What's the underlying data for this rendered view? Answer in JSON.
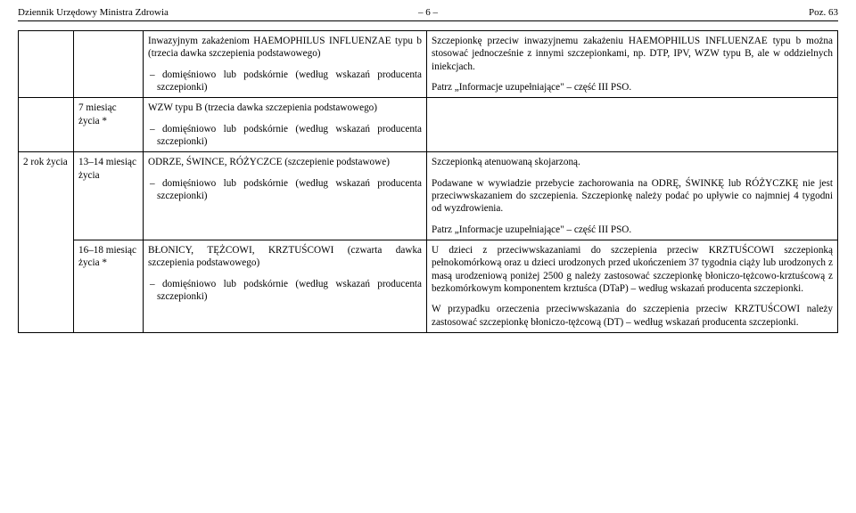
{
  "header": {
    "left": "Dziennik Urzędowy Ministra Zdrowia",
    "center": "– 6 –",
    "right": "Poz. 63"
  },
  "rows": [
    {
      "c0": "",
      "c1": "",
      "c2": [
        {
          "t": "Inwazyjnym zakażeniom HAEMOPHILUS INFLUENZAE typu b (trzecia dawka szczepienia podstawowego)",
          "cls": "para justify"
        },
        {
          "t": "– domięśniowo lub podskórnie (według wskazań producenta szczepionki)",
          "cls": "para indent justify"
        }
      ],
      "c3": [
        {
          "t": "Szczepionkę przeciw inwazyjnemu zakażeniu HAEMOPHILUS INFLUENZAE typu b można stosować jednocześnie z innymi szczepionkami, np. DTP, IPV, WZW typu B, ale w oddzielnych iniekcjach.",
          "cls": "para justify"
        },
        {
          "t": "Patrz „Informacje uzupełniające\" – część III PSO.",
          "cls": "para"
        }
      ]
    },
    {
      "c0": "",
      "c1": "7 miesiąc życia *",
      "c2": [
        {
          "t": "WZW typu B (trzecia dawka szczepienia podstawowego)",
          "cls": "para justify"
        },
        {
          "t": "– domięśniowo lub podskórnie (według wskazań producenta szczepionki)",
          "cls": "para indent justify"
        }
      ],
      "c3": [
        {
          "t": "",
          "cls": "para"
        }
      ]
    },
    {
      "c0": "2 rok życia",
      "c1": "13–14 miesiąc życia",
      "c2": [
        {
          "t": "ODRZE, ŚWINCE, RÓŻYCZCE (szczepienie podstawowe)",
          "cls": "para justify"
        },
        {
          "t": "– domięśniowo lub podskórnie (według wskazań producenta szczepionki)",
          "cls": "para indent justify"
        }
      ],
      "c3": [
        {
          "t": "Szczepionką atenuowaną skojarzoną.",
          "cls": "para"
        },
        {
          "t": "Podawane w wywiadzie przebycie zachorowania na ODRĘ, ŚWINKĘ lub RÓŻYCZKĘ nie jest przeciwwskazaniem do szczepienia. Szczepionkę należy podać po upływie co najmniej 4 tygodni od wyzdrowienia.",
          "cls": "para justify"
        },
        {
          "t": "Patrz „Informacje uzupełniające\" – część III PSO.",
          "cls": "para"
        }
      ],
      "rowspan0": 2
    },
    {
      "c1": "16–18 miesiąc życia *",
      "c2": [
        {
          "t": "BŁONICY, TĘŻCOWI, KRZTUŚCOWI (czwarta dawka szczepienia podstawowego)",
          "cls": "para justify"
        },
        {
          "t": "– domięśniowo lub podskórnie (według wskazań producenta szczepionki)",
          "cls": "para indent justify"
        }
      ],
      "c3": [
        {
          "t": "U dzieci z przeciwwskazaniami do szczepienia przeciw KRZTUŚCOWI szczepionką pełnokomórkową oraz u dzieci urodzonych przed ukończeniem 37 tygodnia ciąży lub urodzonych z masą urodzeniową poniżej 2500 g należy zastosować szczepionkę błoniczo-tężcowo-krztuścową z bezkomórkowym komponentem krztuśca (DTaP) – według wskazań producenta szczepionki.",
          "cls": "para justify"
        },
        {
          "t": "W przypadku orzeczenia przeciwwskazania do szczepienia przeciw KRZTUŚCOWI należy zastosować szczepionkę błoniczo-tężcową (DT) – według wskazań producenta szczepionki.",
          "cls": "para justify"
        }
      ]
    }
  ]
}
